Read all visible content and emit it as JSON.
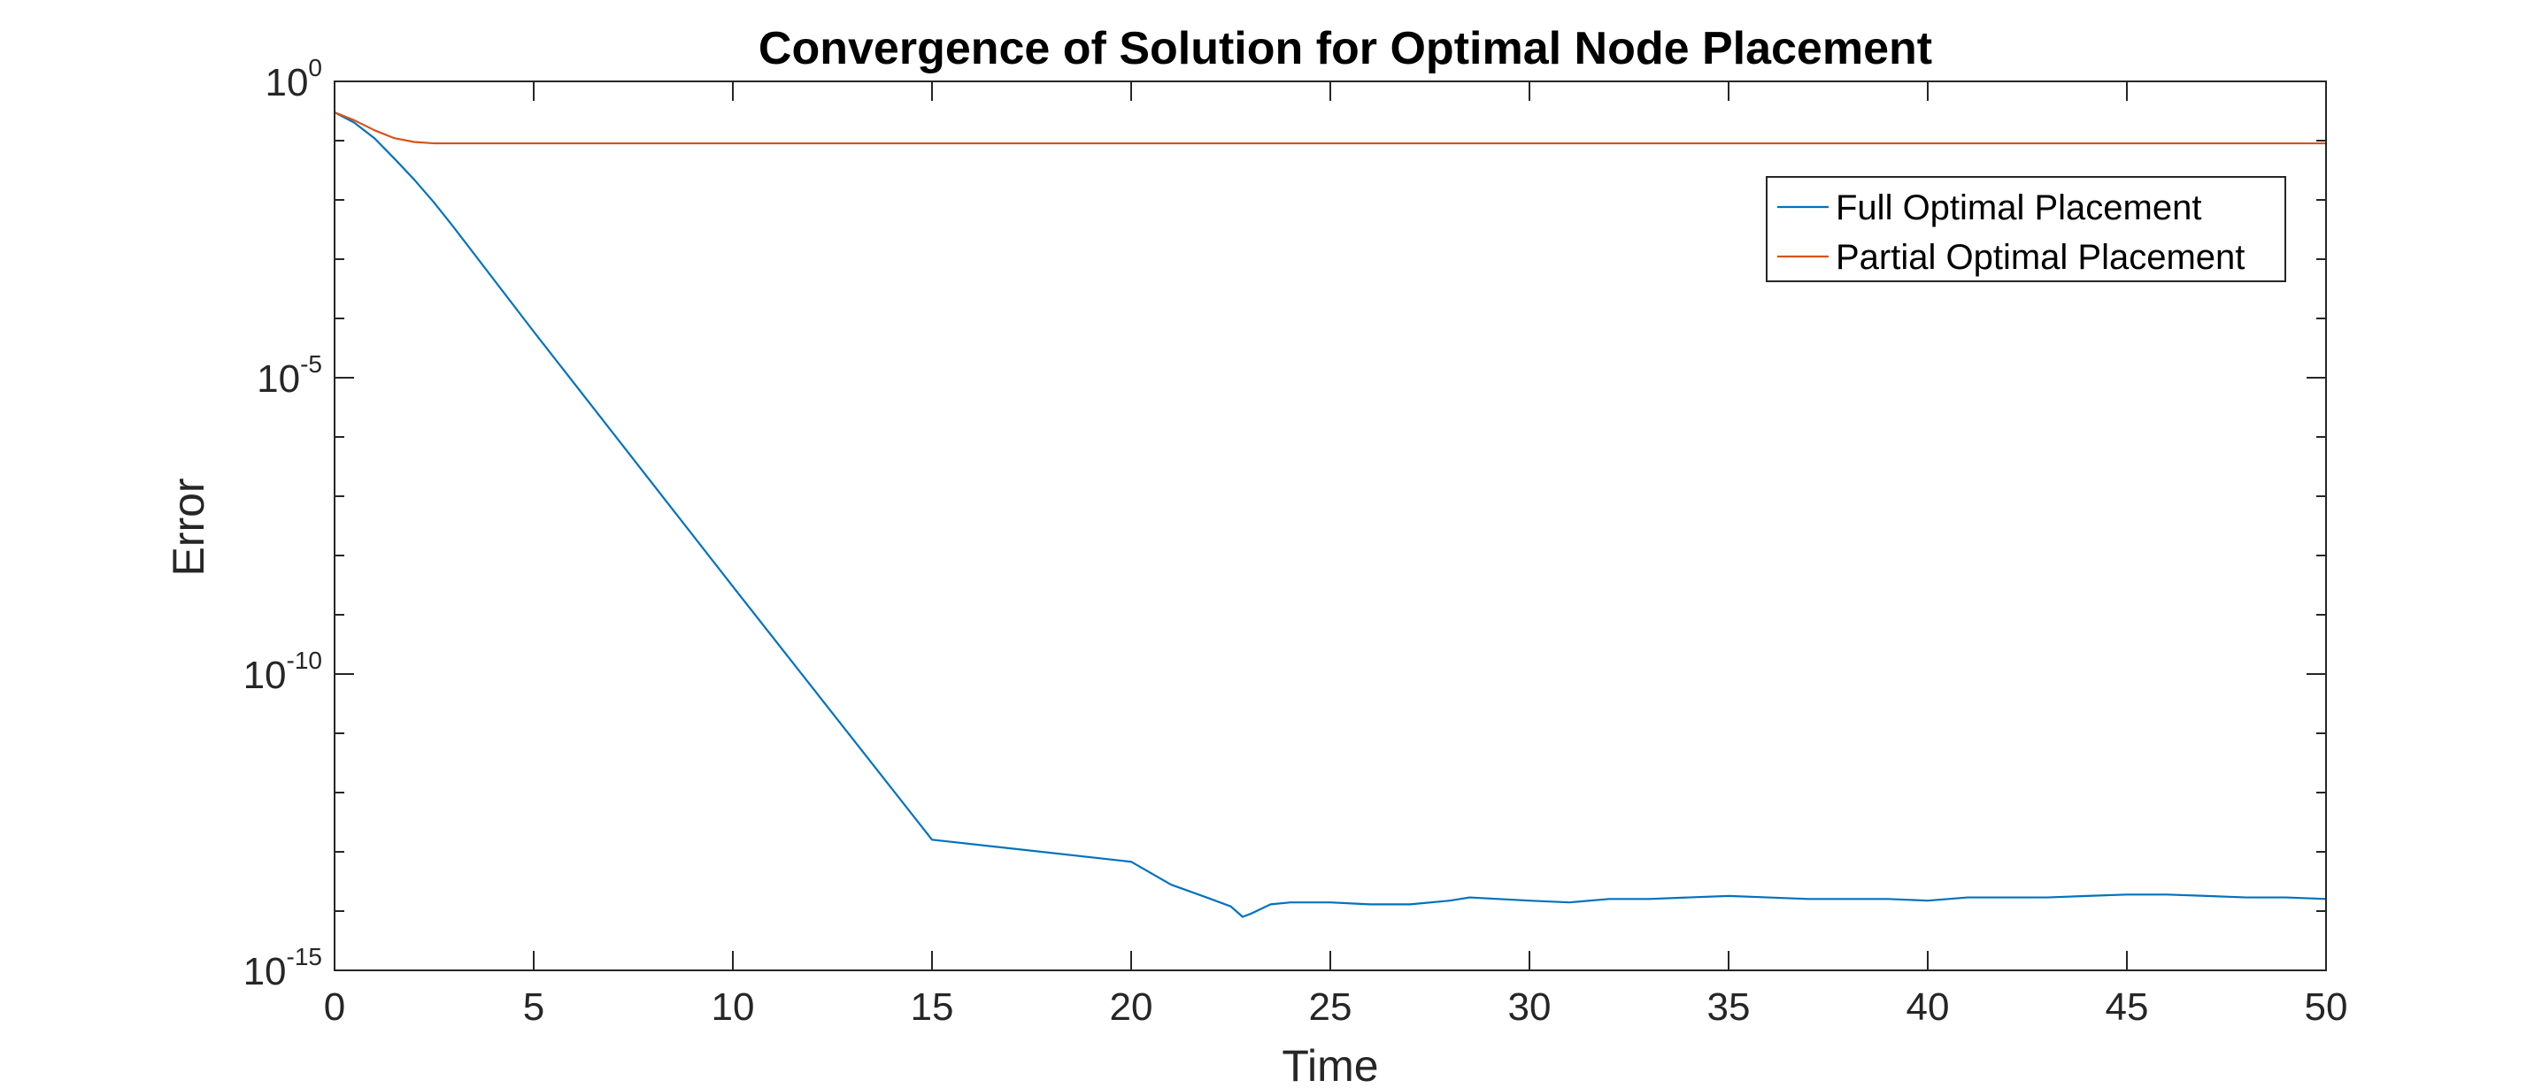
{
  "chart_data": {
    "type": "line",
    "title": "Convergence of Solution for Optimal Node Placement",
    "xlabel": "Time",
    "ylabel": "Error",
    "xlim": [
      0,
      50
    ],
    "ylim": [
      1e-15,
      1
    ],
    "yscale": "log",
    "grid": false,
    "legend_position": "top-right",
    "x_ticks": [
      0,
      5,
      10,
      15,
      20,
      25,
      30,
      35,
      40,
      45,
      50
    ],
    "y_ticks": [
      {
        "value": 1e-15,
        "base": "10",
        "exp": "-15"
      },
      {
        "value": 1e-10,
        "base": "10",
        "exp": "-10"
      },
      {
        "value": 1e-05,
        "base": "10",
        "exp": "-5"
      },
      {
        "value": 1,
        "base": "10",
        "exp": "0"
      }
    ],
    "series": [
      {
        "name": "Full Optimal Placement",
        "color": "#0072BD",
        "x": [
          0,
          0.5,
          1,
          1.5,
          2,
          2.5,
          3,
          5,
          10,
          15,
          20,
          21,
          22,
          22.5,
          22.8,
          23,
          23.5,
          24,
          25,
          26,
          27,
          28,
          28.5,
          30,
          31,
          32,
          33,
          34,
          35,
          36,
          37,
          38,
          39,
          40,
          41,
          42,
          43,
          44,
          45,
          46,
          47,
          48,
          49,
          50
        ],
        "y": [
          0.3,
          0.2,
          0.11,
          0.05,
          0.022,
          0.009,
          0.0034,
          6e-05,
          3e-09,
          1.6e-13,
          6.8e-14,
          2.8e-14,
          1.6e-14,
          1.2e-14,
          8e-15,
          9e-15,
          1.3e-14,
          1.4e-14,
          1.4e-14,
          1.3e-14,
          1.3e-14,
          1.5e-14,
          1.7e-14,
          1.5e-14,
          1.4e-14,
          1.6e-14,
          1.6e-14,
          1.7e-14,
          1.8e-14,
          1.7e-14,
          1.6e-14,
          1.6e-14,
          1.6e-14,
          1.5e-14,
          1.7e-14,
          1.7e-14,
          1.7e-14,
          1.8e-14,
          1.9e-14,
          1.9e-14,
          1.8e-14,
          1.7e-14,
          1.7e-14,
          1.6e-14
        ]
      },
      {
        "name": "Partial Optimal Placement",
        "color": "#D95319",
        "x": [
          0,
          0.5,
          1,
          1.5,
          2,
          2.5,
          3,
          5,
          10,
          20,
          30,
          40,
          50
        ],
        "y": [
          0.3,
          0.22,
          0.15,
          0.11,
          0.095,
          0.09,
          0.09,
          0.09,
          0.09,
          0.09,
          0.09,
          0.09,
          0.09
        ]
      }
    ]
  }
}
